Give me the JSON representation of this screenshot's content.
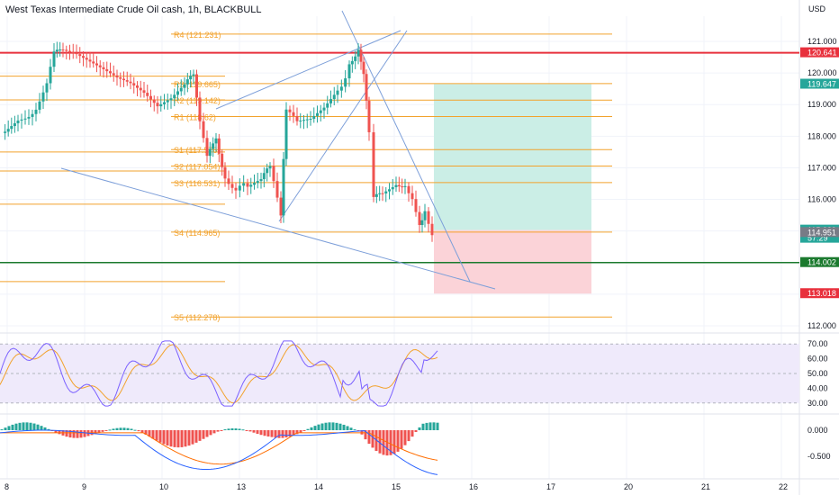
{
  "header": {
    "title": "West Texas Intermediate Crude Oil cash, 1h, BLACKBULL",
    "currency": "USD"
  },
  "colors": {
    "pivot": "#f2a22c",
    "resistance": "#e8303c",
    "support": "#1b7a2e",
    "trendline": "#7d9fd9",
    "candle_up": "#26a69a",
    "candle_down": "#ef5350",
    "profit_zone": "#cbeee6",
    "loss_zone": "#fbd3d8",
    "rsi_band": "#efeafb",
    "rsi_line": "#7b61ff",
    "rsi_signal": "#f2a22c",
    "macd_line": "#2962ff",
    "signal_line": "#ff6d00"
  },
  "chart_data": {
    "type": "candlestick",
    "symbol": "West Texas Intermediate Crude Oil cash",
    "timeframe": "1h",
    "broker": "BLACKBULL",
    "ylim": [
      111.7,
      121.7
    ],
    "y_ticks": [
      112.0,
      113.0,
      114.0,
      115.0,
      116.0,
      117.0,
      118.0,
      119.0,
      120.0,
      121.0
    ],
    "x_ticks": [
      "8",
      "9",
      "10",
      "13",
      "14",
      "15",
      "16",
      "17",
      "20",
      "21",
      "22"
    ],
    "pivot_levels": [
      {
        "name": "R4",
        "label": "R4 (121.231)",
        "value": 121.231
      },
      {
        "name": "R3",
        "label": "R3 (119.665)",
        "value": 119.665
      },
      {
        "name": "R2",
        "label": "R2 (119.142)",
        "value": 119.142
      },
      {
        "name": "R1",
        "label": "R1 (118.62)",
        "value": 118.62
      },
      {
        "name": "S1",
        "label": "S1 (117.576)",
        "value": 117.576
      },
      {
        "name": "S2",
        "label": "S2 (117.054)",
        "value": 117.054
      },
      {
        "name": "S3",
        "label": "S3 (116.531)",
        "value": 116.531
      },
      {
        "name": "S4",
        "label": "S4 (114.965)",
        "value": 114.965
      },
      {
        "name": "S5",
        "label": "S5 (112.278)",
        "value": 112.278
      }
    ],
    "horizontal_lines": [
      {
        "name": "resistance",
        "value": 120.641
      },
      {
        "name": "support",
        "value": 114.002
      }
    ],
    "position": {
      "type": "long",
      "entry": 115.029,
      "take_profit": 119.647,
      "stop_loss": 113.018
    },
    "price_tags": [
      {
        "text": "120.641",
        "value": 120.641,
        "color": "#e8303c"
      },
      {
        "text": "119.647",
        "value": 119.647,
        "color": "#26a69a"
      },
      {
        "text": "115.029",
        "value": 115.029,
        "color": "#26a69a",
        "sub": "57:29"
      },
      {
        "text": "114.951",
        "value": 114.951,
        "color": "#787b86"
      },
      {
        "text": "114.002",
        "value": 114.002,
        "color": "#1b7a2e"
      },
      {
        "text": "113.018",
        "value": 113.018,
        "color": "#e8303c"
      }
    ],
    "rsi": {
      "ticks": [
        "70.00",
        "60.00",
        "50.00",
        "40.00",
        "30.00"
      ],
      "upper": 70,
      "lower": 30
    },
    "macd": {
      "ticks": [
        "0.000",
        "-0.500"
      ]
    }
  }
}
